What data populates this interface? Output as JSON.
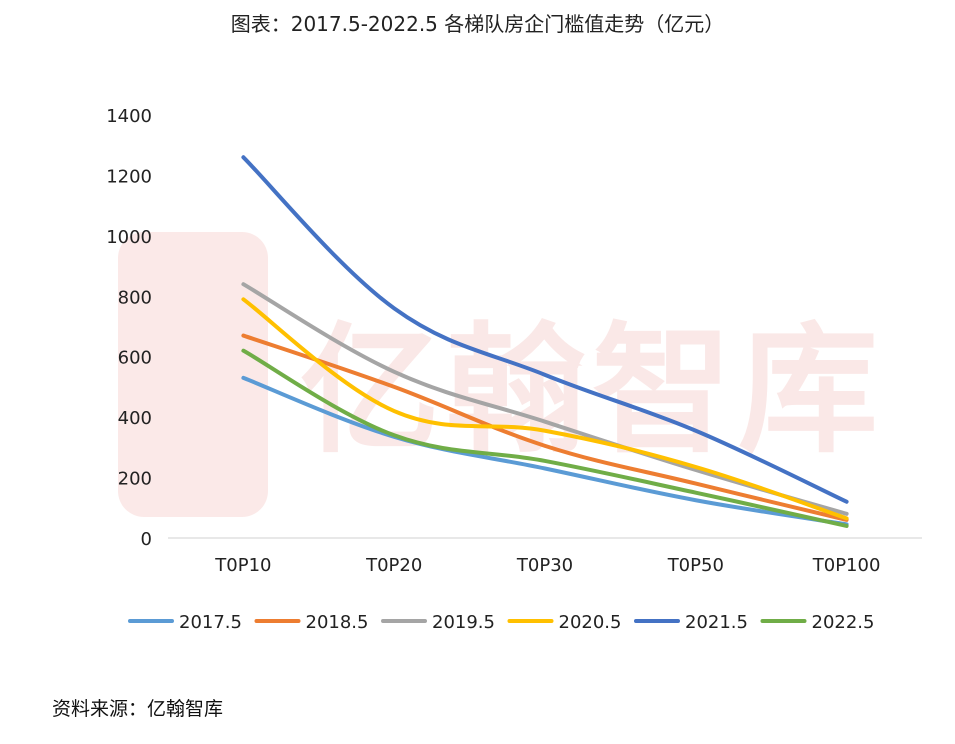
{
  "title": "图表：2017.5-2022.5 各梯队房企门槛值走势（亿元）",
  "source": "资料来源：亿翰智库",
  "watermark": "亿翰智库",
  "chart_data": {
    "type": "line",
    "title": "图表：2017.5-2022.5 各梯队房企门槛值走势（亿元）",
    "xlabel": "",
    "ylabel": "",
    "categories": [
      "T0P10",
      "T0P20",
      "T0P30",
      "T0P50",
      "T0P100"
    ],
    "ylim": [
      0,
      1400
    ],
    "yticks": [
      0,
      200,
      400,
      600,
      800,
      1000,
      1200,
      1400
    ],
    "grid": false,
    "legend": "bottom",
    "series": [
      {
        "name": "2017.5",
        "color": "#5B9BD5",
        "values": [
          530,
          335,
          230,
          125,
          45
        ]
      },
      {
        "name": "2018.5",
        "color": "#ED7D31",
        "values": [
          670,
          500,
          305,
          180,
          60
        ]
      },
      {
        "name": "2019.5",
        "color": "#A5A5A5",
        "values": [
          840,
          550,
          385,
          225,
          80
        ]
      },
      {
        "name": "2020.5",
        "color": "#FFC000",
        "values": [
          790,
          420,
          355,
          235,
          65
        ]
      },
      {
        "name": "2021.5",
        "color": "#4472C4",
        "values": [
          1260,
          760,
          540,
          355,
          120
        ]
      },
      {
        "name": "2022.5",
        "color": "#70AD47",
        "values": [
          620,
          340,
          255,
          150,
          40
        ]
      }
    ]
  }
}
